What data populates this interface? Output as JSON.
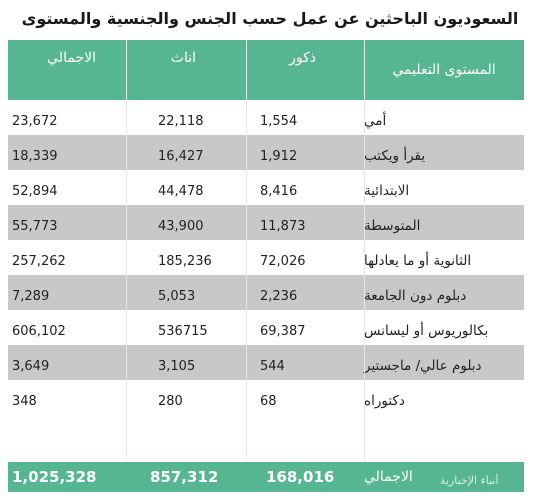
{
  "title": "السعوديون الباحثين عن عمل حسب الجنس والجنسية والمستوى التعليمي",
  "headers": {
    "education": "المستوى التعليمي",
    "male": "ذكور",
    "female": "اناث",
    "total": "الاجمالي"
  },
  "rows": [
    {
      "label": "أمي",
      "male": "1,554",
      "female": "22,118",
      "total": "23,672"
    },
    {
      "label": "يقرأ ويكتب",
      "male": "1,912",
      "female": "16,427",
      "total": "18,339"
    },
    {
      "label": "الابتدائية",
      "male": "8,416",
      "female": "44,478",
      "total": "52,894"
    },
    {
      "label": "المتوسطة",
      "male": "11,873",
      "female": "43,900",
      "total": "55,773"
    },
    {
      "label": "الثانوية أو ما يعادلها",
      "male": "72,026",
      "female": "185,236",
      "total": "257,262"
    },
    {
      "label": "دبلوم دون الجامعة",
      "male": "2,236",
      "female": "5,053",
      "total": "7,289"
    },
    {
      "label": "بكالوريوس أو ليسانس",
      "male": "69,387",
      "female": "536715",
      "total": "606,102"
    },
    {
      "label": "دبلوم عالي/ ماجستير",
      "male": "544",
      "female": "3,105",
      "total": "3,649"
    },
    {
      "label": "دكتوراه",
      "male": "68",
      "female": "280",
      "total": "348"
    }
  ],
  "totals": {
    "label": "الاجمالي",
    "male": "168,016",
    "female": "857,312",
    "total": "1,025,328"
  },
  "watermark": "أنباء الإخبارية",
  "colors": {
    "header_bg": "#56b692",
    "stripe_bg": "#c8c8c8",
    "header_text": "#ffffff"
  }
}
